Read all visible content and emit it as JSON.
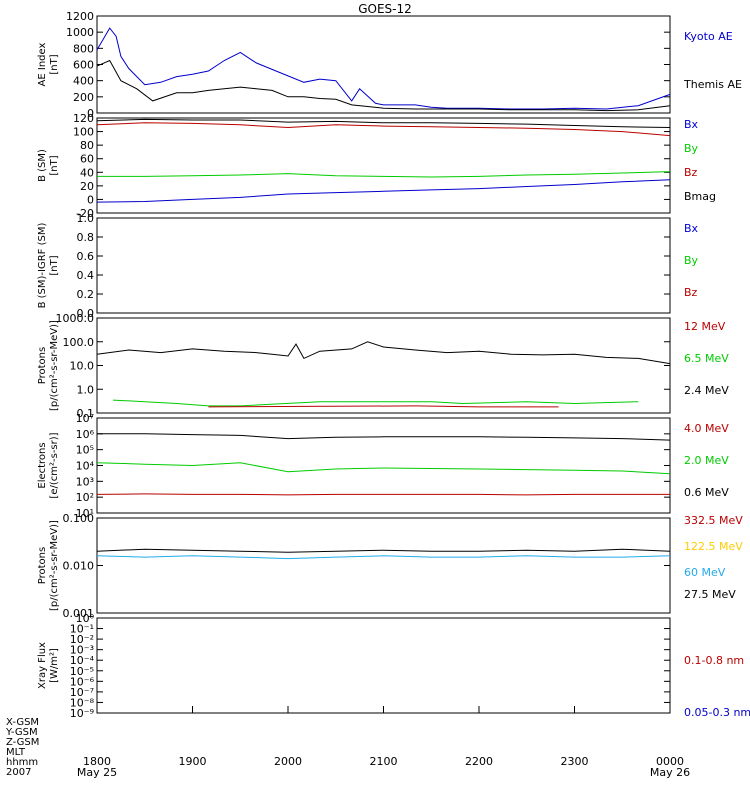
{
  "title": "GOES-12",
  "colors": {
    "axis": "#000000",
    "blue": "#0000cc",
    "green": "#00cc00",
    "red": "#bb0000",
    "yellow": "#ffcc00",
    "cyan": "#22aaee",
    "black": "#000000"
  },
  "chart_data": [
    {
      "type": "line",
      "ylabel": "AE Index\n[nT]",
      "ylim": [
        0,
        1200
      ],
      "yticks": [
        "0",
        "200",
        "400",
        "600",
        "800",
        "1000",
        "1200"
      ],
      "legend": [
        {
          "label": "Kyoto AE",
          "color": "#0000cc"
        },
        {
          "label": "Themis AE",
          "color": "#000000"
        }
      ],
      "series": [
        {
          "name": "Kyoto AE",
          "color": "#0000cc",
          "x": [
            0,
            8,
            12,
            15,
            20,
            30,
            40,
            50,
            60,
            70,
            80,
            90,
            100,
            115,
            130,
            140,
            150,
            160,
            165,
            175,
            180,
            190,
            200,
            210,
            220,
            230,
            240,
            260,
            280,
            300,
            320,
            340,
            360
          ],
          "y": [
            780,
            1050,
            950,
            700,
            550,
            350,
            380,
            450,
            480,
            520,
            650,
            750,
            620,
            500,
            380,
            420,
            400,
            150,
            300,
            120,
            100,
            100,
            100,
            70,
            60,
            60,
            60,
            50,
            50,
            60,
            50,
            90,
            230
          ]
        },
        {
          "name": "Themis AE",
          "color": "#000000",
          "x": [
            0,
            8,
            15,
            25,
            35,
            50,
            60,
            70,
            80,
            90,
            100,
            110,
            120,
            130,
            140,
            150,
            160,
            170,
            180,
            200,
            220,
            240,
            260,
            280,
            300,
            320,
            340,
            360
          ],
          "y": [
            580,
            650,
            400,
            300,
            150,
            250,
            250,
            280,
            300,
            320,
            300,
            280,
            200,
            200,
            180,
            170,
            100,
            80,
            60,
            50,
            50,
            50,
            40,
            40,
            40,
            30,
            40,
            90
          ]
        }
      ]
    },
    {
      "type": "line",
      "ylabel": "B (SM)\n[nT]",
      "ylim": [
        -20,
        120
      ],
      "yticks": [
        "-20",
        "0",
        "20",
        "40",
        "60",
        "80",
        "100",
        "120"
      ],
      "legend": [
        {
          "label": "Bx",
          "color": "#0000cc"
        },
        {
          "label": "By",
          "color": "#00cc00"
        },
        {
          "label": "Bz",
          "color": "#bb0000"
        },
        {
          "label": "Bmag",
          "color": "#000000"
        }
      ],
      "series": [
        {
          "name": "Bmag",
          "color": "#000000",
          "x": [
            0,
            30,
            60,
            90,
            120,
            150,
            180,
            210,
            240,
            270,
            300,
            330,
            360
          ],
          "y": [
            116,
            118,
            117,
            117,
            114,
            115,
            113,
            113,
            112,
            111,
            109,
            107,
            106
          ]
        },
        {
          "name": "Bz",
          "color": "#bb0000",
          "x": [
            0,
            30,
            60,
            90,
            120,
            150,
            180,
            210,
            240,
            270,
            300,
            330,
            360
          ],
          "y": [
            110,
            113,
            112,
            110,
            106,
            110,
            108,
            107,
            106,
            105,
            103,
            100,
            94
          ]
        },
        {
          "name": "By",
          "color": "#00cc00",
          "x": [
            0,
            30,
            60,
            90,
            120,
            150,
            180,
            210,
            240,
            270,
            300,
            330,
            360
          ],
          "y": [
            34,
            34,
            35,
            36,
            38,
            35,
            34,
            33,
            34,
            36,
            37,
            39,
            41
          ]
        },
        {
          "name": "Bx",
          "color": "#0000cc",
          "x": [
            0,
            30,
            60,
            90,
            120,
            150,
            180,
            210,
            240,
            270,
            300,
            330,
            360
          ],
          "y": [
            -4,
            -3,
            0,
            3,
            8,
            10,
            12,
            14,
            16,
            19,
            22,
            26,
            29
          ]
        }
      ]
    },
    {
      "type": "line",
      "ylabel": "B (SM)-IGRF (SM)\n[nT]",
      "ylim": [
        0,
        1
      ],
      "yticks": [
        "0.0",
        "0.2",
        "0.4",
        "0.6",
        "0.8",
        "1.0"
      ],
      "legend": [
        {
          "label": "Bx",
          "color": "#0000cc"
        },
        {
          "label": "By",
          "color": "#00cc00"
        },
        {
          "label": "Bz",
          "color": "#bb0000"
        }
      ],
      "series": []
    },
    {
      "type": "line",
      "scale": "log",
      "ylabel": "Protons\n[p/(cm²-s-sr-MeV)]",
      "ylim": [
        0.1,
        1000
      ],
      "yticks": [
        "0.1",
        "1.0",
        "10.0",
        "100.0",
        "1000.0"
      ],
      "legend": [
        {
          "label": "12 MeV",
          "color": "#bb0000"
        },
        {
          "label": "6.5 MeV",
          "color": "#00cc00"
        },
        {
          "label": "2.4 MeV",
          "color": "#000000"
        }
      ],
      "series": [
        {
          "name": "2.4 MeV",
          "color": "#000000",
          "x": [
            0,
            20,
            40,
            60,
            80,
            100,
            110,
            120,
            125,
            130,
            140,
            160,
            170,
            180,
            200,
            220,
            240,
            260,
            280,
            300,
            320,
            340,
            360
          ],
          "y": [
            30,
            45,
            35,
            50,
            40,
            35,
            30,
            25,
            80,
            20,
            40,
            50,
            100,
            60,
            45,
            35,
            40,
            30,
            28,
            30,
            22,
            20,
            12
          ]
        },
        {
          "name": "6.5 MeV",
          "color": "#00cc00",
          "x": [
            10,
            30,
            50,
            70,
            90,
            140,
            190,
            210,
            230,
            270,
            300,
            340
          ],
          "y": [
            0.35,
            0.3,
            0.25,
            0.2,
            0.2,
            0.3,
            0.3,
            0.3,
            0.25,
            0.3,
            0.25,
            0.3
          ]
        },
        {
          "name": "12 MeV",
          "color": "#bb0000",
          "x": [
            70,
            200,
            240,
            260,
            290
          ],
          "y": [
            0.18,
            0.2,
            0.18,
            0.18,
            0.18
          ]
        }
      ]
    },
    {
      "type": "line",
      "scale": "log",
      "ylabel": "Electrons\n[e/(cm²-s-sr)]",
      "ylim": [
        10,
        10000000
      ],
      "yticks": [
        "10¹",
        "10²",
        "10³",
        "10⁴",
        "10⁵",
        "10⁶",
        "10⁷"
      ],
      "legend": [
        {
          "label": "4.0 MeV",
          "color": "#bb0000"
        },
        {
          "label": "2.0 MeV",
          "color": "#00cc00"
        },
        {
          "label": "0.6 MeV",
          "color": "#000000"
        }
      ],
      "series": [
        {
          "name": "0.6 MeV",
          "color": "#000000",
          "x": [
            0,
            30,
            60,
            90,
            120,
            150,
            180,
            210,
            240,
            270,
            300,
            330,
            360
          ],
          "y": [
            1000000,
            1000000,
            900000,
            800000,
            500000,
            600000,
            650000,
            650000,
            650000,
            600000,
            550000,
            500000,
            400000
          ]
        },
        {
          "name": "2.0 MeV",
          "color": "#00cc00",
          "x": [
            0,
            30,
            60,
            90,
            120,
            150,
            180,
            210,
            240,
            270,
            300,
            330,
            360
          ],
          "y": [
            15000,
            12000,
            10000,
            15000,
            4000,
            6000,
            7000,
            6500,
            6000,
            5500,
            5000,
            4500,
            3000
          ]
        },
        {
          "name": "4.0 MeV",
          "color": "#bb0000",
          "x": [
            0,
            30,
            60,
            90,
            120,
            150,
            180,
            210,
            240,
            270,
            300,
            330,
            360
          ],
          "y": [
            150,
            160,
            150,
            150,
            140,
            150,
            150,
            150,
            150,
            140,
            150,
            150,
            150
          ]
        }
      ]
    },
    {
      "type": "line",
      "scale": "log",
      "ylabel": "Protons\n[p/(cm²-s-sr-MeV)]",
      "ylim": [
        0.001,
        0.1
      ],
      "yticks": [
        "0.001",
        "0.010",
        "0.100"
      ],
      "legend": [
        {
          "label": "332.5 MeV",
          "color": "#bb0000"
        },
        {
          "label": "122.5 MeV",
          "color": "#ffcc00"
        },
        {
          "label": "60 MeV",
          "color": "#22aaee"
        },
        {
          "label": "27.5 MeV",
          "color": "#000000"
        }
      ],
      "series": [
        {
          "name": "27.5 MeV",
          "color": "#000000",
          "x": [
            0,
            30,
            60,
            90,
            120,
            150,
            180,
            210,
            240,
            270,
            300,
            330,
            360
          ],
          "y": [
            0.02,
            0.022,
            0.021,
            0.02,
            0.019,
            0.02,
            0.021,
            0.02,
            0.02,
            0.021,
            0.02,
            0.022,
            0.02
          ]
        },
        {
          "name": "60 MeV",
          "color": "#22aaee",
          "x": [
            0,
            30,
            60,
            90,
            120,
            150,
            180,
            210,
            240,
            270,
            300,
            330,
            360
          ],
          "y": [
            0.016,
            0.015,
            0.016,
            0.015,
            0.014,
            0.015,
            0.016,
            0.015,
            0.015,
            0.016,
            0.015,
            0.015,
            0.016
          ]
        }
      ]
    },
    {
      "type": "line",
      "scale": "log",
      "ylabel": "Xray Flux\n[W/m²]",
      "ylim": [
        1e-09,
        1
      ],
      "yticks": [
        "10⁻⁹",
        "10⁻⁸",
        "10⁻⁷",
        "10⁻⁶",
        "10⁻⁵",
        "10⁻⁴",
        "10⁻³",
        "10⁻²",
        "10⁻¹",
        "10⁰"
      ],
      "legend": [
        {
          "label": "0.1-0.8 nm",
          "color": "#bb0000"
        },
        {
          "label": "0.05-0.3 nm",
          "color": "#0000cc"
        }
      ],
      "series": []
    }
  ],
  "xaxis": {
    "tick_labels": [
      "1800",
      "1900",
      "2000",
      "2100",
      "2200",
      "2300",
      "0000"
    ],
    "date_labels": [
      {
        "at": 0,
        "text": "May 25"
      },
      {
        "at": 6,
        "text": "May 26"
      }
    ],
    "row_labels": [
      "X-GSM",
      "Y-GSM",
      "Z-GSM",
      "MLT",
      "hhmm",
      "2007"
    ]
  }
}
